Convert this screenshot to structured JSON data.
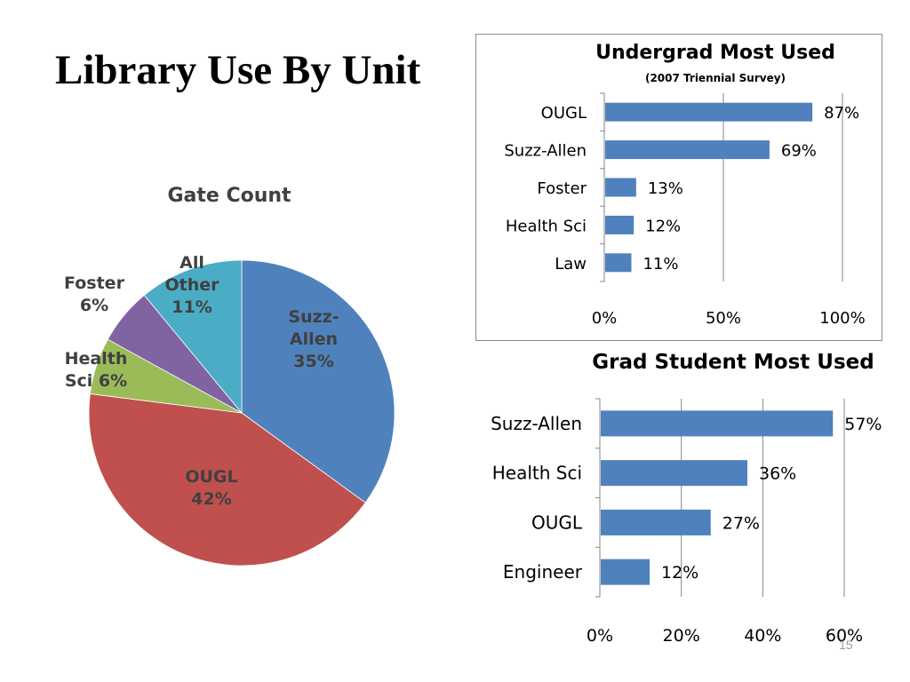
{
  "slide": {
    "title": "Library Use By Unit",
    "page_number": "15"
  },
  "colors": {
    "bar": "#4f81bd",
    "axis": "#868686",
    "grid": "#868686",
    "pie": [
      "#4f81bd",
      "#c0504d",
      "#9bbb59",
      "#8064a2",
      "#4bacc6"
    ]
  },
  "chart_data": [
    {
      "id": "gate_count",
      "type": "pie",
      "title": "Gate Count",
      "slices": [
        {
          "label_lines": [
            "Suzz-",
            "Allen",
            "35%"
          ],
          "value": 35
        },
        {
          "label_lines": [
            "OUGL",
            "42%"
          ],
          "value": 42
        },
        {
          "label_lines": [
            "Health",
            "Sci 6%"
          ],
          "value": 6
        },
        {
          "label_lines": [
            "Foster",
            "6%"
          ],
          "value": 6
        },
        {
          "label_lines": [
            "All",
            "Other",
            "11%"
          ],
          "value": 11
        }
      ],
      "start_angle_deg": 0,
      "direction": "clockwise"
    },
    {
      "id": "undergrad_most_used",
      "type": "bar",
      "orientation": "horizontal",
      "title": "Undergrad Most Used",
      "subtitle": "(2007 Triennial Survey)",
      "categories": [
        "OUGL",
        "Suzz-Allen",
        "Foster",
        "Health Sci",
        "Law"
      ],
      "values": [
        87,
        69,
        13,
        12,
        11
      ],
      "value_labels": [
        "87%",
        "69%",
        "13%",
        "12%",
        "11%"
      ],
      "xlim": [
        0,
        100
      ],
      "ticks": [
        0,
        50,
        100
      ],
      "tick_labels": [
        "0%",
        "50%",
        "100%"
      ],
      "grid": true,
      "legend": "none"
    },
    {
      "id": "grad_student_most_used",
      "type": "bar",
      "orientation": "horizontal",
      "title": "Grad Student Most  Used",
      "categories": [
        "Suzz-Allen",
        "Health Sci",
        "OUGL",
        "Engineer"
      ],
      "values": [
        57,
        36,
        27,
        12
      ],
      "value_labels": [
        "57%",
        "36%",
        "27%",
        "12%"
      ],
      "xlim": [
        0,
        60
      ],
      "ticks": [
        0,
        20,
        40,
        60
      ],
      "tick_labels": [
        "0%",
        "20%",
        "40%",
        "60%"
      ],
      "grid": true,
      "legend": "none"
    }
  ]
}
